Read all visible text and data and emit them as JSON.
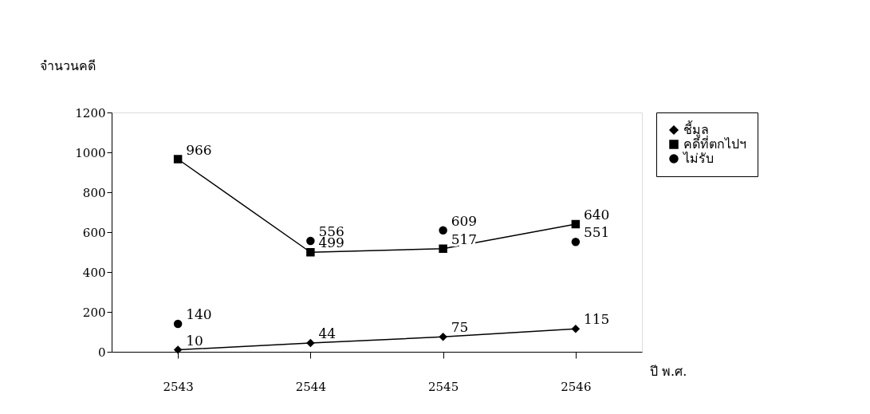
{
  "chart_data": {
    "type": "line",
    "ylabel": "จำนวนคดี",
    "xlabel": "ปี พ.ศ.",
    "categories": [
      "2543",
      "2544",
      "2545",
      "2546"
    ],
    "series": [
      {
        "name": "ชี้มูล",
        "color": "#000000",
        "marker": "diamond",
        "values": [
          10,
          44,
          75,
          115
        ]
      },
      {
        "name": "คดีที่ตกไปฯ",
        "color": "#000000",
        "marker": "square",
        "values": [
          966,
          499,
          517,
          640
        ]
      },
      {
        "name": "ไม่รับ",
        "type": "scatter",
        "color": "#000000",
        "marker": "circle",
        "values": [
          140,
          556,
          609,
          551
        ]
      }
    ],
    "ylim": [
      0,
      1200
    ],
    "yticks": [
      0,
      200,
      400,
      600,
      800,
      1000,
      1200
    ],
    "grid": false,
    "legend": "right",
    "data_labels": true
  }
}
